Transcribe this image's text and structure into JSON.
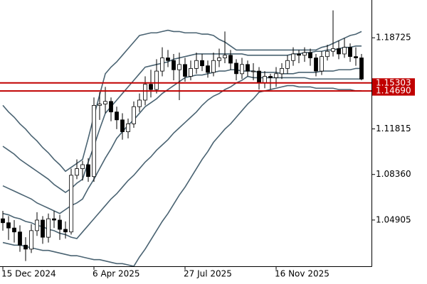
{
  "chart_data": {
    "type": "candlestick",
    "categories": [
      "15 Dec 2024",
      null,
      null,
      null,
      null,
      null,
      null,
      null,
      null,
      null,
      null,
      null,
      null,
      null,
      null,
      null,
      "6 Apr 2025",
      null,
      null,
      null,
      null,
      null,
      null,
      null,
      null,
      null,
      null,
      null,
      null,
      null,
      null,
      null,
      "27 Jul 2025",
      null,
      null,
      null,
      null,
      null,
      null,
      null,
      null,
      null,
      null,
      null,
      null,
      null,
      null,
      null,
      "16 Nov 2025",
      null,
      null,
      null,
      null,
      null,
      null,
      null,
      null,
      null,
      null,
      null,
      null,
      null,
      null,
      null
    ],
    "open": [
      1.05,
      1.047,
      1.043,
      1.04,
      1.03,
      1.027,
      1.041,
      1.049,
      1.036,
      1.05,
      1.049,
      1.042,
      1.04,
      1.083,
      1.088,
      1.091,
      1.082,
      1.136,
      1.137,
      1.139,
      1.131,
      1.125,
      1.116,
      1.122,
      1.135,
      1.14,
      1.152,
      1.148,
      1.162,
      1.172,
      1.17,
      1.163,
      1.167,
      1.158,
      1.164,
      1.17,
      1.166,
      1.161,
      1.17,
      1.172,
      1.174,
      1.168,
      1.16,
      1.167,
      1.162,
      1.162,
      1.153,
      1.158,
      1.157,
      1.16,
      1.164,
      1.17,
      1.175,
      1.174,
      1.176,
      1.172,
      1.162,
      1.173,
      1.177,
      1.179,
      1.175,
      1.18,
      1.173,
      1.172
    ],
    "high": [
      1.056,
      1.052,
      1.049,
      1.045,
      1.036,
      1.046,
      1.055,
      1.052,
      1.054,
      1.056,
      1.053,
      1.048,
      1.088,
      1.095,
      1.094,
      1.096,
      1.142,
      1.146,
      1.15,
      1.142,
      1.135,
      1.13,
      1.126,
      1.139,
      1.145,
      1.158,
      1.163,
      1.171,
      1.18,
      1.178,
      1.175,
      1.176,
      1.172,
      1.17,
      1.176,
      1.175,
      1.17,
      1.176,
      1.179,
      1.192,
      1.178,
      1.171,
      1.172,
      1.17,
      1.168,
      1.165,
      1.162,
      1.16,
      1.165,
      1.168,
      1.174,
      1.18,
      1.178,
      1.18,
      1.179,
      1.175,
      1.177,
      1.182,
      1.208,
      1.185,
      1.187,
      1.183,
      1.18,
      1.175
    ],
    "low": [
      1.041,
      1.034,
      1.032,
      1.025,
      1.018,
      1.024,
      1.037,
      1.031,
      1.032,
      1.043,
      1.034,
      1.035,
      1.038,
      1.08,
      1.079,
      1.078,
      1.078,
      1.125,
      1.13,
      1.124,
      1.118,
      1.11,
      1.111,
      1.119,
      1.131,
      1.136,
      1.142,
      1.145,
      1.158,
      1.165,
      1.155,
      1.14,
      1.154,
      1.155,
      1.16,
      1.162,
      1.157,
      1.158,
      1.165,
      1.168,
      1.163,
      1.155,
      1.156,
      1.158,
      1.155,
      1.148,
      1.149,
      1.148,
      1.15,
      1.156,
      1.16,
      1.166,
      1.168,
      1.169,
      1.166,
      1.158,
      1.159,
      1.17,
      1.173,
      1.171,
      1.172,
      1.169,
      1.166,
      1.155
    ],
    "close": [
      1.047,
      1.043,
      1.04,
      1.03,
      1.027,
      1.041,
      1.049,
      1.036,
      1.05,
      1.049,
      1.042,
      1.04,
      1.083,
      1.088,
      1.091,
      1.082,
      1.136,
      1.137,
      1.139,
      1.131,
      1.125,
      1.116,
      1.122,
      1.135,
      1.14,
      1.152,
      1.148,
      1.162,
      1.172,
      1.17,
      1.163,
      1.167,
      1.158,
      1.164,
      1.17,
      1.166,
      1.161,
      1.17,
      1.172,
      1.174,
      1.168,
      1.16,
      1.167,
      1.162,
      1.162,
      1.153,
      1.158,
      1.157,
      1.16,
      1.164,
      1.17,
      1.175,
      1.174,
      1.176,
      1.172,
      1.162,
      1.173,
      1.177,
      1.179,
      1.175,
      1.18,
      1.173,
      1.172,
      1.156
    ],
    "up_color": "#ffffff",
    "down_color": "#000000",
    "candle_outline": "#000000",
    "lines": [
      {
        "color": "#4a6372",
        "values": [
          1.136,
          1.131,
          1.127,
          1.122,
          1.118,
          1.113,
          1.109,
          1.104,
          1.1,
          1.095,
          1.091,
          1.086,
          1.089,
          1.092,
          1.095,
          1.111,
          1.128,
          1.144,
          1.16,
          1.165,
          1.169,
          1.174,
          1.179,
          1.184,
          1.189,
          1.19,
          1.191,
          1.191,
          1.192,
          1.193,
          1.192,
          1.192,
          1.191,
          1.191,
          1.191,
          1.19,
          1.19,
          1.189,
          1.186,
          1.184,
          1.181,
          1.178,
          1.178,
          1.178,
          1.178,
          1.178,
          1.178,
          1.178,
          1.178,
          1.178,
          1.178,
          1.178,
          1.178,
          1.178,
          1.178,
          1.178,
          1.18,
          1.181,
          1.183,
          1.185,
          1.187,
          1.189,
          1.19,
          1.192
        ]
      },
      {
        "color": "#4a6372",
        "values": [
          1.105,
          1.102,
          1.099,
          1.095,
          1.092,
          1.089,
          1.086,
          1.083,
          1.08,
          1.076,
          1.073,
          1.07,
          1.073,
          1.077,
          1.08,
          1.093,
          1.105,
          1.118,
          1.13,
          1.135,
          1.14,
          1.145,
          1.15,
          1.155,
          1.16,
          1.165,
          1.166,
          1.167,
          1.168,
          1.169,
          1.171,
          1.172,
          1.173,
          1.174,
          1.175,
          1.175,
          1.175,
          1.175,
          1.175,
          1.175,
          1.175,
          1.175,
          1.175,
          1.174,
          1.174,
          1.174,
          1.174,
          1.174,
          1.174,
          1.174,
          1.174,
          1.175,
          1.175,
          1.176,
          1.176,
          1.177,
          1.177,
          1.178,
          1.178,
          1.179,
          1.18,
          1.18,
          1.181,
          1.181
        ]
      },
      {
        "color": "#4a6372",
        "values": [
          1.075,
          1.073,
          1.071,
          1.069,
          1.067,
          1.065,
          1.062,
          1.06,
          1.058,
          1.056,
          1.054,
          1.057,
          1.06,
          1.062,
          1.065,
          1.073,
          1.08,
          1.088,
          1.096,
          1.103,
          1.111,
          1.116,
          1.121,
          1.125,
          1.13,
          1.135,
          1.138,
          1.141,
          1.145,
          1.148,
          1.151,
          1.154,
          1.157,
          1.158,
          1.159,
          1.159,
          1.16,
          1.161,
          1.162,
          1.162,
          1.163,
          1.163,
          1.162,
          1.162,
          1.162,
          1.161,
          1.161,
          1.161,
          1.161,
          1.16,
          1.16,
          1.16,
          1.161,
          1.161,
          1.161,
          1.161,
          1.162,
          1.162,
          1.162,
          1.163,
          1.163,
          1.163,
          1.164,
          1.164
        ]
      },
      {
        "color": "#4a6372",
        "values": [
          1.054,
          1.053,
          1.051,
          1.05,
          1.048,
          1.047,
          1.045,
          1.044,
          1.042,
          1.041,
          1.039,
          1.038,
          1.036,
          1.035,
          1.04,
          1.045,
          1.05,
          1.055,
          1.06,
          1.065,
          1.069,
          1.074,
          1.079,
          1.083,
          1.088,
          1.093,
          1.097,
          1.102,
          1.106,
          1.11,
          1.115,
          1.119,
          1.123,
          1.127,
          1.131,
          1.136,
          1.14,
          1.143,
          1.145,
          1.148,
          1.15,
          1.153,
          1.155,
          1.158,
          1.157,
          1.157,
          1.157,
          1.157,
          1.157,
          1.157,
          1.157,
          1.157,
          1.157,
          1.157,
          1.156,
          1.156,
          1.156,
          1.156,
          1.156,
          1.156,
          1.156,
          1.156,
          1.156,
          1.156
        ]
      },
      {
        "color": "#4a6372",
        "values": [
          1.032,
          1.031,
          1.03,
          1.03,
          1.029,
          1.028,
          1.027,
          1.026,
          1.026,
          1.025,
          1.024,
          1.023,
          1.022,
          1.022,
          1.021,
          1.02,
          1.019,
          1.019,
          1.018,
          1.017,
          1.016,
          1.016,
          1.015,
          1.014,
          1.021,
          1.027,
          1.034,
          1.041,
          1.048,
          1.054,
          1.061,
          1.068,
          1.074,
          1.081,
          1.088,
          1.095,
          1.101,
          1.108,
          1.113,
          1.118,
          1.122,
          1.127,
          1.132,
          1.137,
          1.141,
          1.146,
          1.147,
          1.148,
          1.149,
          1.15,
          1.151,
          1.151,
          1.15,
          1.15,
          1.15,
          1.149,
          1.149,
          1.149,
          1.149,
          1.148,
          1.148,
          1.148,
          1.147,
          1.147
        ]
      }
    ],
    "ylim": [
      1.014,
      1.2159
    ],
    "yticks": [
      1.18725,
      1.11815,
      {
        "value": 1.0836,
        "label": "1.08360"
      },
      1.04905
    ],
    "levels": [
      1.15303,
      {
        "value": 1.1469,
        "label": "1.14690"
      }
    ],
    "level_color": "#c00000"
  }
}
